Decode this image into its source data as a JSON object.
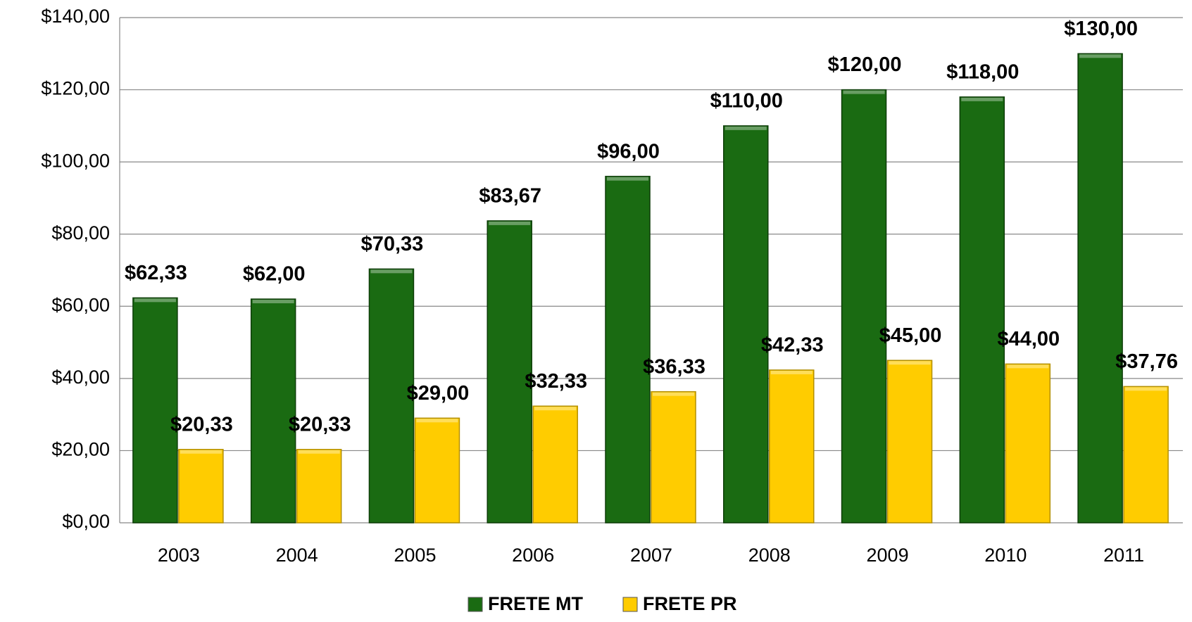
{
  "chart_data": {
    "type": "bar",
    "categories": [
      "2003",
      "2004",
      "2005",
      "2006",
      "2007",
      "2008",
      "2009",
      "2010",
      "2011"
    ],
    "series": [
      {
        "name": "FRETE MT",
        "color": "#1a6b12",
        "values": [
          62.33,
          62,
          70.33,
          83.67,
          96,
          110,
          120,
          118,
          130
        ],
        "value_labels": [
          "$62,33",
          "$62,00",
          "$70,33",
          "$83,67",
          "$96,00",
          "$110,00",
          "$120,00",
          "$118,00",
          "$130,00"
        ]
      },
      {
        "name": "FRETE PR",
        "color": "#ffcc00",
        "values": [
          20.33,
          20.33,
          29,
          32.33,
          36.33,
          42.33,
          45,
          44,
          37.76
        ],
        "value_labels": [
          "$20,33",
          "$20,33",
          "$29,00",
          "$32,33",
          "$36,33",
          "$42,33",
          "$45,00",
          "$44,00",
          "$37,76"
        ]
      }
    ],
    "ylim": [
      0,
      140
    ],
    "yticks": [
      {
        "value": 0,
        "label": "$0,00"
      },
      {
        "value": 20,
        "label": "$20,00"
      },
      {
        "value": 40,
        "label": "$40,00"
      },
      {
        "value": 60,
        "label": "$60,00"
      },
      {
        "value": 80,
        "label": "$80,00"
      },
      {
        "value": 100,
        "label": "$100,00"
      },
      {
        "value": 120,
        "label": "$120,00"
      },
      {
        "value": 140,
        "label": "$140,00"
      }
    ],
    "grid": true,
    "legend": "bottom"
  }
}
